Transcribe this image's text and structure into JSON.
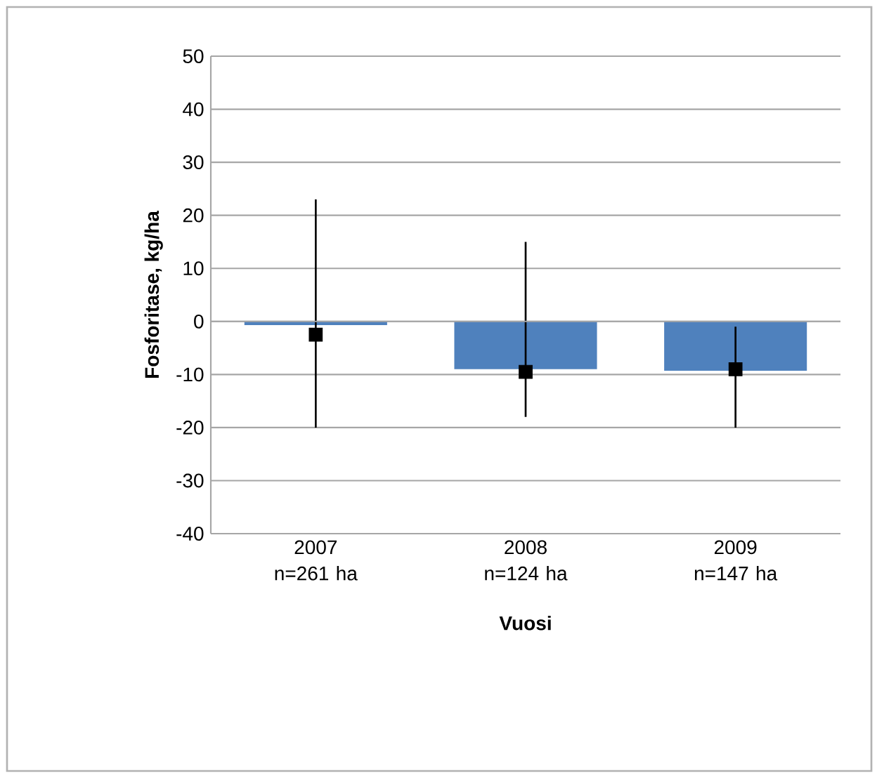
{
  "chart_data": {
    "type": "bar",
    "xlabel": "Vuosi",
    "ylabel": "Fosforitase, kg/ha",
    "categories": [
      "2007 n=261 ha",
      "2008 n=124 ha",
      "2009 n=147 ha"
    ],
    "series": [
      {
        "color": "#4f81bd",
        "values": [
          -0.7,
          -9,
          -9.3
        ],
        "errors": [
          [
            -20,
            23
          ],
          [
            -18,
            15
          ],
          [
            -20,
            -1
          ]
        ]
      },
      {
        "type": "scatter",
        "color": "#000000",
        "x": [
          "2007 n=261 ha",
          "2008 n=124 ha",
          "2009 n=147 ha"
        ],
        "values": [
          -2.5,
          -9.5,
          -9
        ],
        "marker": "square"
      }
    ],
    "ylim": [
      -40,
      50
    ],
    "yticks": [
      -40,
      -30,
      -20,
      -10,
      0,
      10,
      20,
      30,
      40,
      50
    ],
    "grid": "y"
  }
}
